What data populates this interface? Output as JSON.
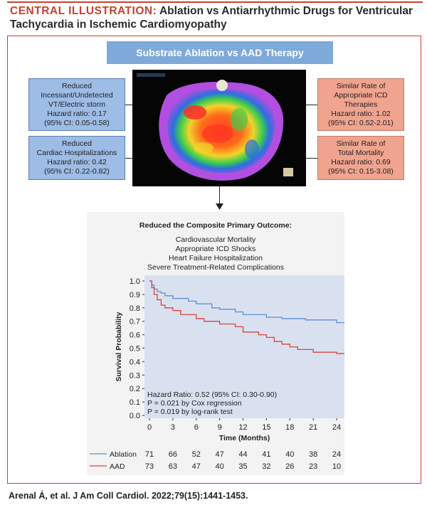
{
  "header": {
    "lead": "CENTRAL ILLUSTRATION:",
    "title_rest": "Ablation vs Antiarrhythmic Drugs for Ventricular",
    "title_line2": "Tachycardia in Ischemic Cardiomyopathy"
  },
  "banner": "Substrate Ablation vs AAD Therapy",
  "left_boxes": [
    {
      "lines": [
        "Reduced",
        "Incessant/Undetected",
        "VT/Electric storm",
        "Hazard ratio: 0.17",
        "(95% CI: 0.05-0.58)"
      ]
    },
    {
      "lines": [
        "Reduced",
        "Cardiac Hospitalizations",
        "Hazard ratio: 0.42",
        "(95% CI: 0.22-0.82)"
      ]
    }
  ],
  "right_boxes": [
    {
      "lines": [
        "Similar Rate of",
        "Appropriate ICD",
        "Therapies",
        "Hazard ratio: 1.02",
        "(95% CI: 0.52-2.01)"
      ]
    },
    {
      "lines": [
        "Similar Rate of",
        "Total Mortality",
        "Hazard ratio: 0.69",
        "(95% CI: 0.15-3.08)"
      ]
    }
  ],
  "panel": {
    "title": "Reduced the Composite Primary Outcome:",
    "components": [
      "Cardiovascular Mortality",
      "Appropriate ICD Shocks",
      "Heart Failure Hospitalization",
      "Severe Treatment-Related Complications"
    ]
  },
  "chart_data": {
    "type": "line",
    "title": "",
    "xlabel": "Time (Months)",
    "ylabel": "Survival Probability",
    "xlim": [
      0,
      25
    ],
    "ylim": [
      0,
      1.0
    ],
    "x_ticks": [
      0,
      3,
      6,
      9,
      12,
      15,
      18,
      21,
      24
    ],
    "y_ticks": [
      "0.0",
      "0.1",
      "0.2",
      "0.3",
      "0.4",
      "0.5",
      "0.6",
      "0.7",
      "0.8",
      "0.9",
      "1.0"
    ],
    "series": [
      {
        "name": "Ablation",
        "color": "#5b8ed6",
        "x": [
          0,
          0.3,
          0.6,
          1,
          1.5,
          2,
          3,
          5,
          6,
          8,
          9,
          11,
          12,
          15,
          17,
          18,
          20,
          24,
          25
        ],
        "y": [
          1.0,
          0.97,
          0.94,
          0.92,
          0.91,
          0.89,
          0.87,
          0.85,
          0.83,
          0.8,
          0.79,
          0.77,
          0.75,
          0.73,
          0.72,
          0.72,
          0.71,
          0.69,
          0.69
        ]
      },
      {
        "name": "AAD",
        "color": "#d9453a",
        "x": [
          0,
          0.3,
          0.6,
          1,
          1.5,
          2,
          3,
          4,
          6,
          7,
          9,
          11,
          12,
          14,
          15,
          16,
          17,
          18,
          19,
          21,
          24,
          25
        ],
        "y": [
          1.0,
          0.95,
          0.9,
          0.86,
          0.82,
          0.8,
          0.78,
          0.75,
          0.72,
          0.7,
          0.68,
          0.66,
          0.62,
          0.6,
          0.58,
          0.55,
          0.53,
          0.51,
          0.49,
          0.47,
          0.46,
          0.46
        ]
      }
    ],
    "annotations": [
      "Hazard Ratio: 0.52 (95% CI: 0.30-0.90)",
      "P = 0.021 by Cox regression",
      "P = 0.019 by log-rank test"
    ],
    "risk_table": [
      {
        "name": "Ablation",
        "counts": [
          71,
          66,
          52,
          47,
          44,
          41,
          40,
          38,
          24
        ]
      },
      {
        "name": "AAD",
        "counts": [
          73,
          63,
          47,
          40,
          35,
          32,
          26,
          23,
          10
        ]
      }
    ]
  },
  "credit": "Arenal Á, et al. J Am Coll Cardiol. 2022;79(15):1441-1453."
}
